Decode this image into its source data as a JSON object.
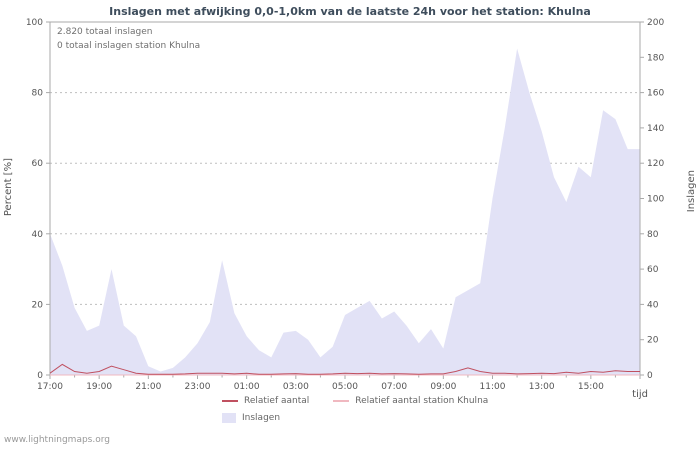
{
  "title": "Inslagen met afwijking 0,0-1,0km van de laatste 24h voor het station: Khulna",
  "annotations": {
    "total": "2.820 totaal inslagen",
    "station": "0 totaal inslagen station Khulna"
  },
  "axes": {
    "left_label": "Percent  [%]",
    "right_label": "Inslagen",
    "x_label": "tijd",
    "left_ticks": [
      0,
      20,
      40,
      60,
      80,
      100
    ],
    "right_ticks": [
      0,
      20,
      40,
      60,
      80,
      100,
      120,
      140,
      160,
      180,
      200
    ],
    "x_ticks": [
      "17:00",
      "19:00",
      "21:00",
      "23:00",
      "01:00",
      "03:00",
      "05:00",
      "07:00",
      "09:00",
      "11:00",
      "13:00",
      "15:00"
    ]
  },
  "legend": [
    {
      "label": "Relatief aantal",
      "color": "#c05060",
      "type": "line"
    },
    {
      "label": "Relatief aantal station Khulna",
      "color": "#f0b8c0",
      "type": "line"
    },
    {
      "label": "Inslagen",
      "color": "#e2e2f6",
      "type": "area"
    }
  ],
  "watermark": "www.lightningmaps.org",
  "colors": {
    "grid": "#bfbfbf",
    "border": "#aaaaaa",
    "title": "#3e4d5c",
    "area_fill": "#e2e2f6",
    "line_relatief": "#c05060",
    "line_station": "#f0b8c0"
  },
  "chart_data": {
    "type": "area",
    "title": "Inslagen met afwijking 0,0-1,0km van de laatste 24h voor het station: Khulna",
    "xlabel": "tijd",
    "ylabel_left": "Percent [%]",
    "ylabel_right": "Inslagen",
    "ylim_left": [
      0,
      100
    ],
    "ylim_right": [
      0,
      200
    ],
    "grid": true,
    "legend_position": "bottom",
    "x": [
      "17:00",
      "17:30",
      "18:00",
      "18:30",
      "19:00",
      "19:30",
      "20:00",
      "20:30",
      "21:00",
      "21:30",
      "22:00",
      "22:30",
      "23:00",
      "23:30",
      "00:00",
      "00:30",
      "01:00",
      "01:30",
      "02:00",
      "02:30",
      "03:00",
      "03:30",
      "04:00",
      "04:30",
      "05:00",
      "05:30",
      "06:00",
      "06:30",
      "07:00",
      "07:30",
      "08:00",
      "08:30",
      "09:00",
      "09:30",
      "10:00",
      "10:30",
      "11:00",
      "11:30",
      "12:00",
      "12:30",
      "13:00",
      "13:30",
      "14:00",
      "14:30",
      "15:00",
      "15:30",
      "16:00",
      "16:30"
    ],
    "series": [
      {
        "name": "Inslagen",
        "axis": "right",
        "type": "area",
        "color": "#e2e2f6",
        "values": [
          80,
          62,
          38,
          25,
          28,
          60,
          28,
          22,
          5,
          2,
          4,
          10,
          18,
          30,
          65,
          35,
          22,
          14,
          10,
          24,
          25,
          20,
          10,
          16,
          34,
          38,
          42,
          32,
          36,
          28,
          18,
          26,
          15,
          44,
          48,
          52,
          100,
          140,
          185,
          160,
          138,
          112,
          98,
          118,
          112,
          150,
          145,
          128
        ]
      },
      {
        "name": "Relatief aantal",
        "axis": "left",
        "type": "line",
        "color": "#c05060",
        "values": [
          0.5,
          3,
          1,
          0.5,
          1,
          2.5,
          1.5,
          0.5,
          0.2,
          0.2,
          0.2,
          0.3,
          0.5,
          0.5,
          0.5,
          0.3,
          0.5,
          0.2,
          0.2,
          0.3,
          0.4,
          0.2,
          0.2,
          0.3,
          0.5,
          0.4,
          0.5,
          0.3,
          0.4,
          0.3,
          0.2,
          0.3,
          0.3,
          1,
          2,
          1,
          0.5,
          0.5,
          0.3,
          0.4,
          0.5,
          0.4,
          0.8,
          0.5,
          1,
          0.8,
          1.2,
          1
        ]
      },
      {
        "name": "Relatief aantal station Khulna",
        "axis": "left",
        "type": "line",
        "color": "#f0b8c0",
        "values": [
          0,
          0,
          0,
          0,
          0,
          0,
          0,
          0,
          0,
          0,
          0,
          0,
          0,
          0,
          0,
          0,
          0,
          0,
          0,
          0,
          0,
          0,
          0,
          0,
          0,
          0,
          0,
          0,
          0,
          0,
          0,
          0,
          0,
          0,
          0,
          0,
          0,
          0,
          0,
          0,
          0,
          0,
          0,
          0,
          0,
          0,
          0,
          0
        ]
      }
    ]
  }
}
